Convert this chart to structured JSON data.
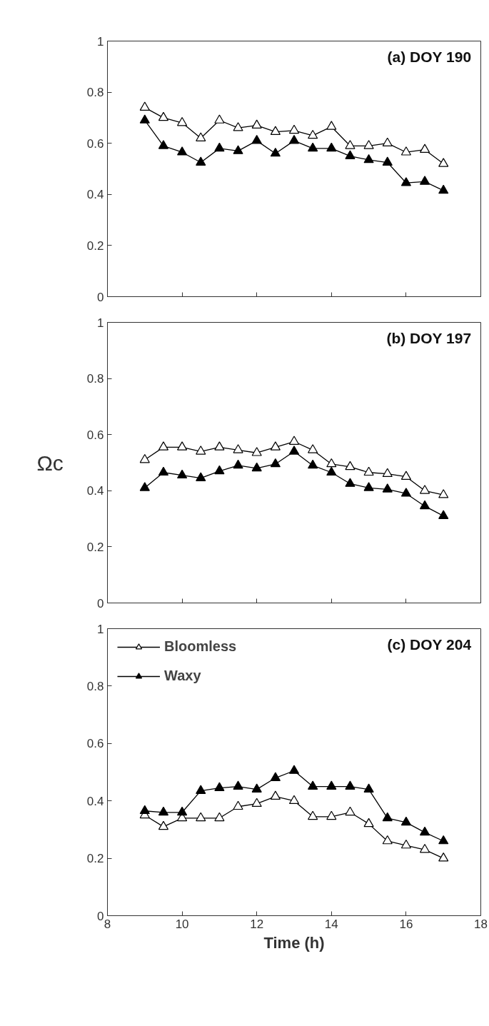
{
  "chart_data": [
    {
      "type": "line",
      "title": "(a) DOY 190",
      "marker": "triangle",
      "x": [
        9,
        9.5,
        10,
        10.5,
        11,
        11.5,
        12,
        12.5,
        13,
        13.5,
        14,
        14.5,
        15,
        15.5,
        16,
        16.5,
        17
      ],
      "xlim": [
        8,
        18
      ],
      "xticks": [
        8,
        10,
        12,
        14,
        16,
        18
      ],
      "ylim": [
        0,
        1
      ],
      "yticks": [
        0,
        0.2,
        0.4,
        0.6,
        0.8,
        1
      ],
      "tick_labels": "y",
      "series": [
        {
          "color": "#000000",
          "values": [
            0.74,
            0.7,
            0.68,
            0.62,
            0.69,
            0.66,
            0.67,
            0.645,
            0.65,
            0.63,
            0.665,
            0.59,
            0.59,
            0.6,
            0.565,
            0.575,
            0.52
          ]
        },
        {
          "color": "#000000",
          "values": [
            0.69,
            0.59,
            0.565,
            0.525,
            0.58,
            0.57,
            0.61,
            0.56,
            0.61,
            0.58,
            0.58,
            0.55,
            0.535,
            0.525,
            0.445,
            0.45,
            0.415
          ]
        }
      ]
    },
    {
      "type": "line",
      "title": "(b) DOY 197",
      "ylabel": "Ωc",
      "marker": "triangle",
      "x": [
        9,
        9.5,
        10,
        10.5,
        11,
        11.5,
        12,
        12.5,
        13,
        13.5,
        14,
        14.5,
        15,
        15.5,
        16,
        16.5,
        17
      ],
      "xlim": [
        8,
        18
      ],
      "xticks": [
        8,
        10,
        12,
        14,
        16,
        18
      ],
      "ylim": [
        0,
        1
      ],
      "yticks": [
        0,
        0.2,
        0.4,
        0.6,
        0.8,
        1
      ],
      "tick_labels": "y",
      "series": [
        {
          "color": "#000000",
          "values": [
            0.51,
            0.555,
            0.555,
            0.54,
            0.555,
            0.545,
            0.535,
            0.555,
            0.575,
            0.545,
            0.495,
            0.485,
            0.465,
            0.46,
            0.45,
            0.4,
            0.385
          ]
        },
        {
          "color": "#000000",
          "values": [
            0.41,
            0.465,
            0.455,
            0.445,
            0.47,
            0.49,
            0.48,
            0.495,
            0.54,
            0.49,
            0.465,
            0.425,
            0.41,
            0.405,
            0.39,
            0.345,
            0.31
          ]
        }
      ]
    },
    {
      "type": "line",
      "title": "(c) DOY 204",
      "xlabel": "Time (h)",
      "marker": "triangle",
      "legend": "top left",
      "x": [
        9,
        9.5,
        10,
        10.5,
        11,
        11.5,
        12,
        12.5,
        13,
        13.5,
        14,
        14.5,
        15,
        15.5,
        16,
        16.5,
        17
      ],
      "xlim": [
        8,
        18
      ],
      "xticks": [
        8,
        10,
        12,
        14,
        16,
        18
      ],
      "ylim": [
        0,
        1
      ],
      "yticks": [
        0,
        0.2,
        0.4,
        0.6,
        0.8,
        1
      ],
      "series": [
        {
          "name": "Bloomless",
          "color": "#000000",
          "values": [
            0.35,
            0.31,
            0.34,
            0.34,
            0.34,
            0.38,
            0.39,
            0.415,
            0.4,
            0.345,
            0.345,
            0.36,
            0.32,
            0.26,
            0.245,
            0.23,
            0.2
          ]
        },
        {
          "name": "Waxy",
          "color": "#000000",
          "values": [
            0.365,
            0.36,
            0.36,
            0.435,
            0.445,
            0.45,
            0.44,
            0.48,
            0.505,
            0.45,
            0.45,
            0.45,
            0.44,
            0.34,
            0.325,
            0.29,
            0.26
          ]
        }
      ]
    }
  ]
}
